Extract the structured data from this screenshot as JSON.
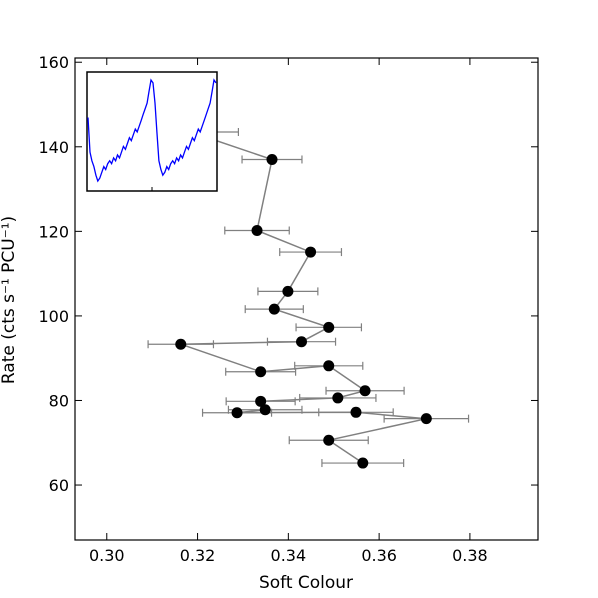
{
  "chart_data": {
    "type": "scatter",
    "xlabel": "Soft Colour",
    "ylabel": "Rate (cts s⁻¹ PCU⁻¹)",
    "xlim": [
      0.293,
      0.395
    ],
    "ylim": [
      47,
      161
    ],
    "x_ticks": [
      "0.30",
      "0.32",
      "0.34",
      "0.36",
      "0.38"
    ],
    "x_tick_values": [
      0.3,
      0.32,
      0.34,
      0.36,
      0.38
    ],
    "y_ticks": [
      "60",
      "80",
      "100",
      "120",
      "140",
      "160"
    ],
    "y_tick_values": [
      60,
      80,
      100,
      120,
      140,
      160
    ],
    "marker_color": "#000000",
    "line_color": "#808080",
    "error_bar_color": "#808080",
    "grid": false,
    "points": [
      {
        "x": 0.3185,
        "y": 143.5,
        "xerr": 0.0105
      },
      {
        "x": 0.3364,
        "y": 137.0,
        "xerr": 0.0066
      },
      {
        "x": 0.3331,
        "y": 120.2,
        "xerr": 0.0071
      },
      {
        "x": 0.3449,
        "y": 115.1,
        "xerr": 0.0068
      },
      {
        "x": 0.3399,
        "y": 105.8,
        "xerr": 0.0066
      },
      {
        "x": 0.3369,
        "y": 101.6,
        "xerr": 0.0064
      },
      {
        "x": 0.3489,
        "y": 97.3,
        "xerr": 0.0072
      },
      {
        "x": 0.3429,
        "y": 93.9,
        "xerr": 0.0075
      },
      {
        "x": 0.3163,
        "y": 93.3,
        "xerr": 0.0072
      },
      {
        "x": 0.3339,
        "y": 86.8,
        "xerr": 0.0077
      },
      {
        "x": 0.3489,
        "y": 88.2,
        "xerr": 0.0075
      },
      {
        "x": 0.3569,
        "y": 82.3,
        "xerr": 0.0086
      },
      {
        "x": 0.3509,
        "y": 80.6,
        "xerr": 0.0084
      },
      {
        "x": 0.3339,
        "y": 79.8,
        "xerr": 0.0076
      },
      {
        "x": 0.3349,
        "y": 77.8,
        "xerr": 0.0081
      },
      {
        "x": 0.3287,
        "y": 77.1,
        "xerr": 0.0076
      },
      {
        "x": 0.3549,
        "y": 77.2,
        "xerr": 0.0082
      },
      {
        "x": 0.3704,
        "y": 75.7,
        "xerr": 0.0093
      },
      {
        "x": 0.3489,
        "y": 70.6,
        "xerr": 0.0087
      },
      {
        "x": 0.3564,
        "y": 65.2,
        "xerr": 0.009
      }
    ],
    "inset": {
      "type": "line",
      "line_color": "#0000ff",
      "values": [
        145,
        133,
        130,
        128,
        125,
        123,
        124,
        126,
        128,
        127,
        129,
        130,
        129,
        131,
        130,
        132,
        131,
        133,
        135,
        134,
        136,
        138,
        137,
        139,
        141,
        140,
        142,
        144,
        146,
        148,
        150,
        154,
        158,
        157,
        150,
        140,
        130,
        127,
        125,
        126,
        128,
        127,
        129,
        130,
        129,
        131,
        130,
        132,
        131,
        133,
        135,
        134,
        136,
        138,
        137,
        139,
        141,
        140,
        142,
        144,
        146,
        148,
        150,
        154,
        158,
        157
      ]
    }
  }
}
